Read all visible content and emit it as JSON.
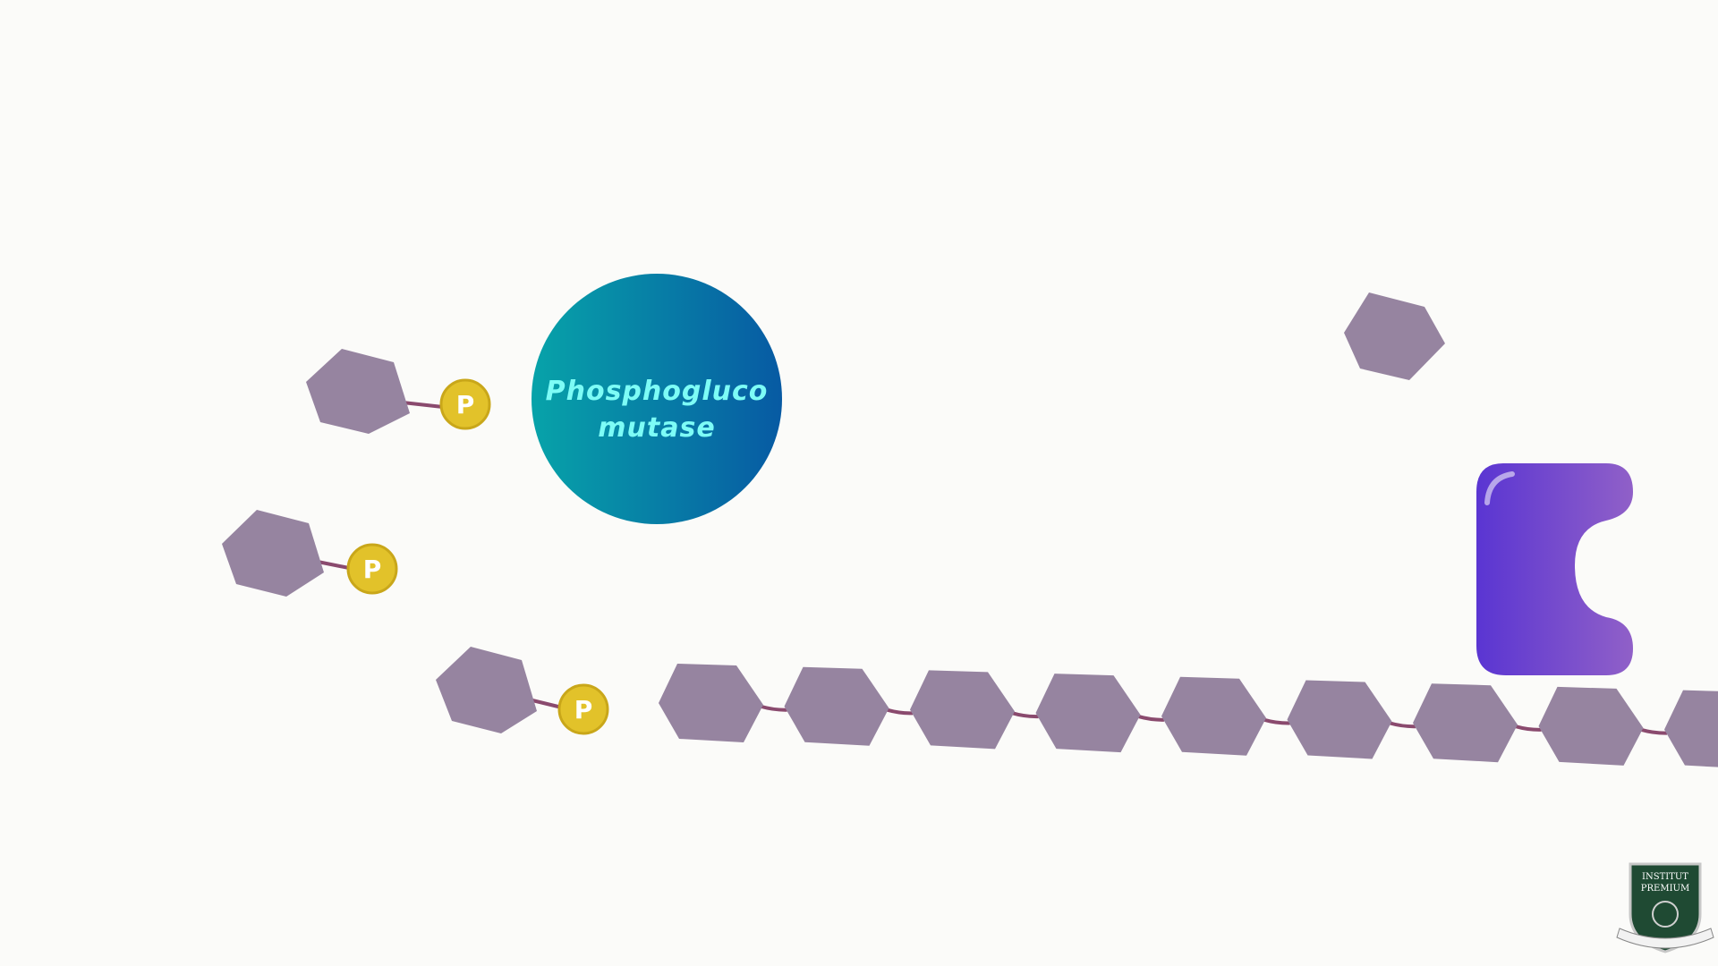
{
  "scene": {
    "background_color": "#fbfbf9",
    "colors": {
      "glucose": "#9684a0",
      "bond": "#8a4a6e",
      "phosphate_fill": "#e2c22a",
      "phosphate_ring": "#c9a71a",
      "phosphate_text": "#ffffff",
      "enzyme_gradient_start": "#07a3a9",
      "enzyme_gradient_end": "#075aa3",
      "enzyme_text": "#7dfcf6",
      "glycogen_phosphorylase_start": "#5a35d2",
      "glycogen_phosphorylase_end": "#9060c8"
    },
    "enzyme": {
      "label_line1": "Phosphogluco",
      "label_line2": "mutase"
    },
    "phosphate": {
      "label": "P"
    },
    "glucose_phosphates": [
      {
        "id": "g1p-1",
        "label": "P"
      },
      {
        "id": "g1p-2",
        "label": "P"
      },
      {
        "id": "g1p-3",
        "label": "P"
      }
    ],
    "glycogen_chain_units": 9,
    "free_glucose_count": 1,
    "logo": {
      "text_line1": "INSTITUT",
      "text_line2": "PREMIUM",
      "icon": "shield-crest-icon"
    }
  }
}
